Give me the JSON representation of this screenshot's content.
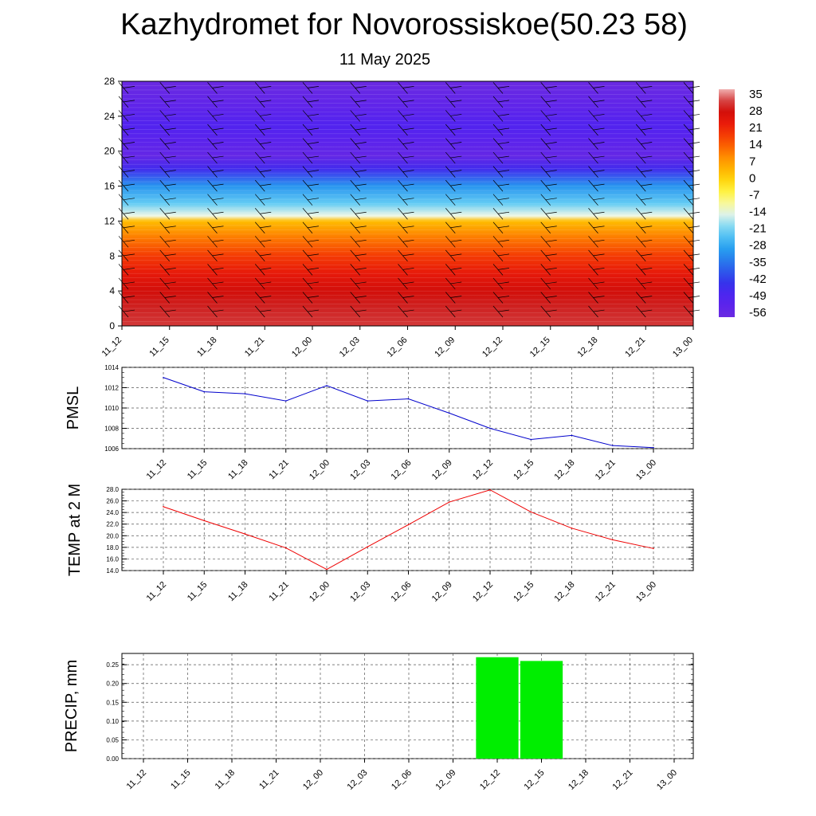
{
  "title": "Kazhydromet for Novorossiskoe(50.23 58)",
  "date": "11 May 2025",
  "colorbar": {
    "labels": [
      "35",
      "28",
      "21",
      "14",
      "7",
      "0",
      "-7",
      "-14",
      "-21",
      "-28",
      "-35",
      "-42",
      "-49",
      "-56"
    ]
  },
  "chart_data": [
    {
      "type": "heatmap",
      "name": "temperature-cross-section",
      "x_categories": [
        "11_12",
        "11_15",
        "11_18",
        "11_21",
        "12_00",
        "12_03",
        "12_06",
        "12_09",
        "12_12",
        "12_15",
        "12_18",
        "12_21",
        "13_00"
      ],
      "y_ticks": [
        0,
        4,
        8,
        12,
        16,
        20,
        24,
        28
      ],
      "ylim": [
        0,
        28
      ],
      "value_range": [
        -56,
        35
      ],
      "temperature_profile_by_level": [
        [
          0,
          30
        ],
        [
          2,
          29
        ],
        [
          4,
          26
        ],
        [
          6,
          22
        ],
        [
          8,
          17
        ],
        [
          10,
          10
        ],
        [
          12,
          2
        ],
        [
          12.6,
          -14
        ],
        [
          14,
          -22
        ],
        [
          16,
          -30
        ],
        [
          18,
          -45
        ],
        [
          19.5,
          -54
        ],
        [
          21,
          -51
        ],
        [
          23,
          -48
        ],
        [
          25,
          -52
        ],
        [
          28,
          -56
        ]
      ],
      "colors": {
        "warm": "#d81410",
        "cold": "#5a1aee"
      }
    },
    {
      "type": "line",
      "name": "pmsl",
      "ylabel": "PMSL",
      "categories": [
        "11_12",
        "11_15",
        "11_18",
        "11_21",
        "12_00",
        "12_03",
        "12_06",
        "12_09",
        "12_12",
        "12_15",
        "12_18",
        "12_21",
        "13_00"
      ],
      "values": [
        1013.0,
        1011.6,
        1011.4,
        1010.7,
        1012.2,
        1010.7,
        1010.9,
        1009.5,
        1008.0,
        1006.9,
        1007.3,
        1006.3,
        1006.1
      ],
      "ylim": [
        1006,
        1014
      ],
      "yticks": [
        "1006",
        "1008",
        "1010",
        "1012",
        "1014"
      ],
      "color": "#0000cc",
      "grid": true
    },
    {
      "type": "line",
      "name": "temp-2m",
      "ylabel": "TEMP at 2 M",
      "categories": [
        "11_12",
        "11_15",
        "11_18",
        "11_21",
        "12_00",
        "12_03",
        "12_06",
        "12_09",
        "12_12",
        "12_15",
        "12_18",
        "12_21",
        "13_00"
      ],
      "values": [
        25.0,
        22.6,
        20.3,
        17.9,
        14.2,
        18.1,
        21.9,
        25.8,
        27.9,
        24.1,
        21.3,
        19.3,
        17.8
      ],
      "ylim": [
        14,
        28
      ],
      "yticks": [
        "14.0",
        "16.0",
        "18.0",
        "20.0",
        "22.0",
        "24.0",
        "26.0",
        "28.0"
      ],
      "color": "#ee0000",
      "grid": true
    },
    {
      "type": "bar",
      "name": "precip",
      "ylabel": "PRECIP, mm",
      "categories": [
        "11_12",
        "11_15",
        "11_18",
        "11_21",
        "12_00",
        "12_03",
        "12_06",
        "12_09",
        "12_12",
        "12_15",
        "12_18",
        "12_21",
        "13_00"
      ],
      "values": [
        0,
        0,
        0,
        0,
        0,
        0,
        0,
        0,
        0.27,
        0.26,
        0,
        0,
        0
      ],
      "ylim": [
        0,
        0.28
      ],
      "yticks": [
        "0.00",
        "0.05",
        "0.10",
        "0.15",
        "0.20",
        "0.25"
      ],
      "color": "#00ee00",
      "grid": true
    }
  ]
}
